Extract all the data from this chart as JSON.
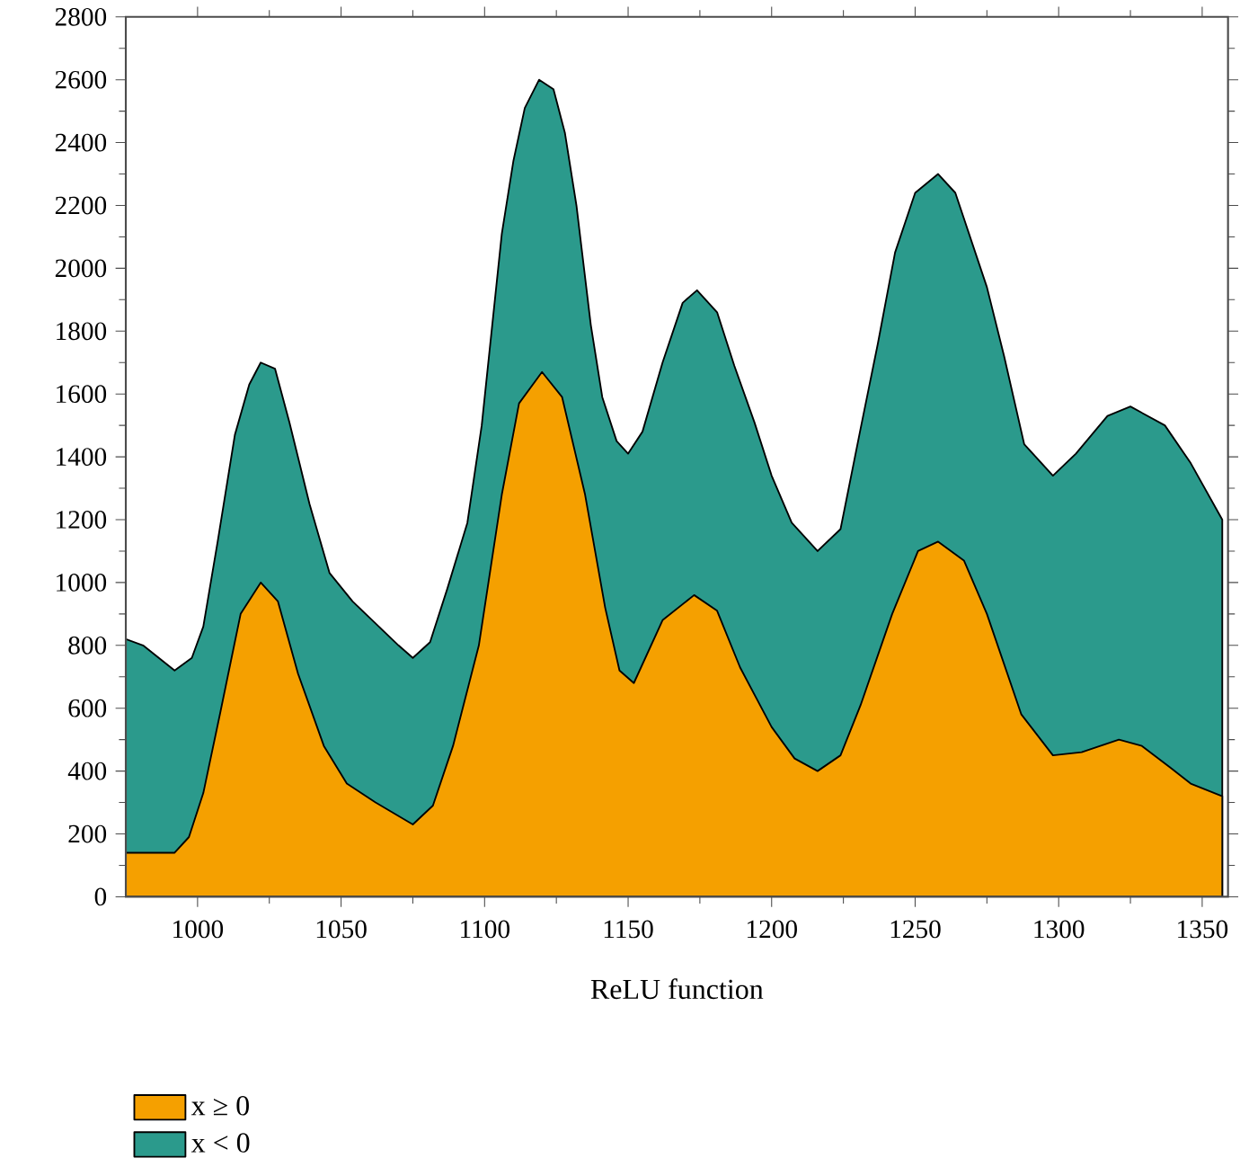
{
  "chart_data": {
    "type": "area",
    "xlabel": "ReLU function",
    "xlim": [
      975,
      1359
    ],
    "ylim": [
      0,
      2800
    ],
    "xticks": [
      1000,
      1050,
      1100,
      1150,
      1200,
      1250,
      1300,
      1350
    ],
    "yticks": [
      0,
      200,
      400,
      600,
      800,
      1000,
      1200,
      1400,
      1600,
      1800,
      2000,
      2200,
      2400,
      2600,
      2800
    ],
    "grid": false,
    "legend": "bottom left",
    "series": [
      {
        "name": "x ≥ 0",
        "color": "#f5a000",
        "x": [
          975,
          992,
          997,
          1002,
          1008,
          1015,
          1022,
          1028,
          1035,
          1044,
          1052,
          1062,
          1075,
          1082,
          1089,
          1098,
          1106,
          1112,
          1120,
          1127,
          1135,
          1142,
          1147,
          1152,
          1162,
          1173,
          1181,
          1189,
          1200,
          1208,
          1216,
          1224,
          1231,
          1242,
          1251,
          1258,
          1267,
          1275,
          1287,
          1298,
          1308,
          1321,
          1329,
          1339,
          1346,
          1357
        ],
        "values": [
          140,
          140,
          190,
          330,
          590,
          900,
          1000,
          940,
          710,
          480,
          360,
          300,
          230,
          290,
          480,
          800,
          1280,
          1570,
          1670,
          1590,
          1280,
          920,
          720,
          680,
          880,
          960,
          910,
          730,
          540,
          440,
          400,
          450,
          610,
          900,
          1100,
          1130,
          1070,
          900,
          580,
          450,
          460,
          500,
          480,
          410,
          360,
          320
        ]
      },
      {
        "name": "x < 0",
        "color": "#2b9a8c",
        "x": [
          975,
          981,
          992,
          998,
          1002,
          1007,
          1013,
          1018,
          1022,
          1027,
          1032,
          1039,
          1046,
          1054,
          1062,
          1070,
          1075,
          1081,
          1087,
          1094,
          1099,
          1106,
          1110,
          1114,
          1119,
          1124,
          1128,
          1132,
          1137,
          1141,
          1146,
          1150,
          1155,
          1162,
          1169,
          1174,
          1181,
          1187,
          1194,
          1200,
          1207,
          1216,
          1224,
          1231,
          1237,
          1243,
          1250,
          1258,
          1264,
          1275,
          1281,
          1288,
          1298,
          1306,
          1317,
          1325,
          1337,
          1346,
          1357
        ],
        "values": [
          820,
          800,
          720,
          760,
          860,
          1130,
          1470,
          1630,
          1700,
          1680,
          1510,
          1250,
          1030,
          940,
          870,
          800,
          760,
          810,
          980,
          1190,
          1500,
          2110,
          2340,
          2510,
          2600,
          2570,
          2430,
          2200,
          1820,
          1590,
          1450,
          1410,
          1480,
          1700,
          1890,
          1930,
          1860,
          1690,
          1510,
          1340,
          1190,
          1100,
          1170,
          1490,
          1760,
          2050,
          2240,
          2300,
          2240,
          1940,
          1720,
          1440,
          1340,
          1410,
          1530,
          1560,
          1500,
          1380,
          1200
        ]
      }
    ]
  }
}
